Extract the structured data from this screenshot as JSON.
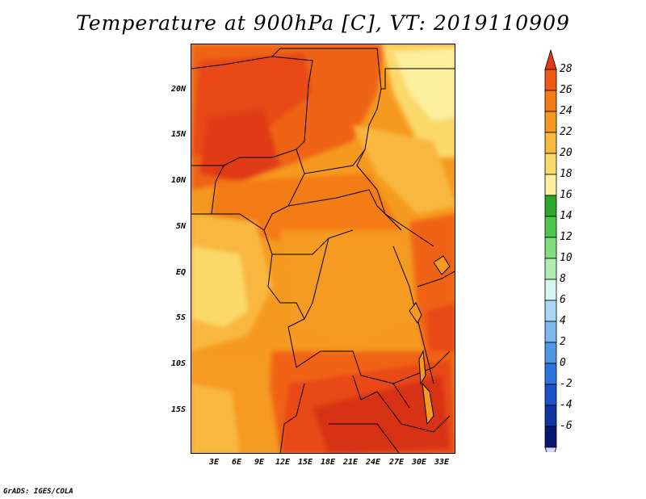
{
  "title": "Temperature at 900hPa [C], VT: 2019110909",
  "credit": "GrADS: IGES/COLA",
  "map": {
    "region": "Central Africa",
    "lat_labels": [
      "20N",
      "15N",
      "10N",
      "5N",
      "EQ",
      "5S",
      "10S",
      "15S"
    ],
    "lon_labels": [
      "3E",
      "6E",
      "9E",
      "12E",
      "15E",
      "18E",
      "21E",
      "24E",
      "27E",
      "30E",
      "33E"
    ]
  },
  "colorbar": {
    "labels": [
      "28",
      "26",
      "24",
      "22",
      "20",
      "18",
      "16",
      "14",
      "12",
      "10",
      "8",
      "6",
      "4",
      "2",
      "0",
      "-2",
      "-4",
      "-6"
    ],
    "colors": [
      "#e03a14",
      "#ee5a14",
      "#f47c14",
      "#f59a20",
      "#f8b840",
      "#fbd86a",
      "#fcefa0",
      "#29a829",
      "#4cc84c",
      "#80dd80",
      "#b0ecb0",
      "#d6f5f5",
      "#a8d8f5",
      "#7cb8ee",
      "#5096e6",
      "#2a74dc",
      "#1a54c8",
      "#1036a0",
      "#081870",
      "#d8d8f5"
    ]
  }
}
